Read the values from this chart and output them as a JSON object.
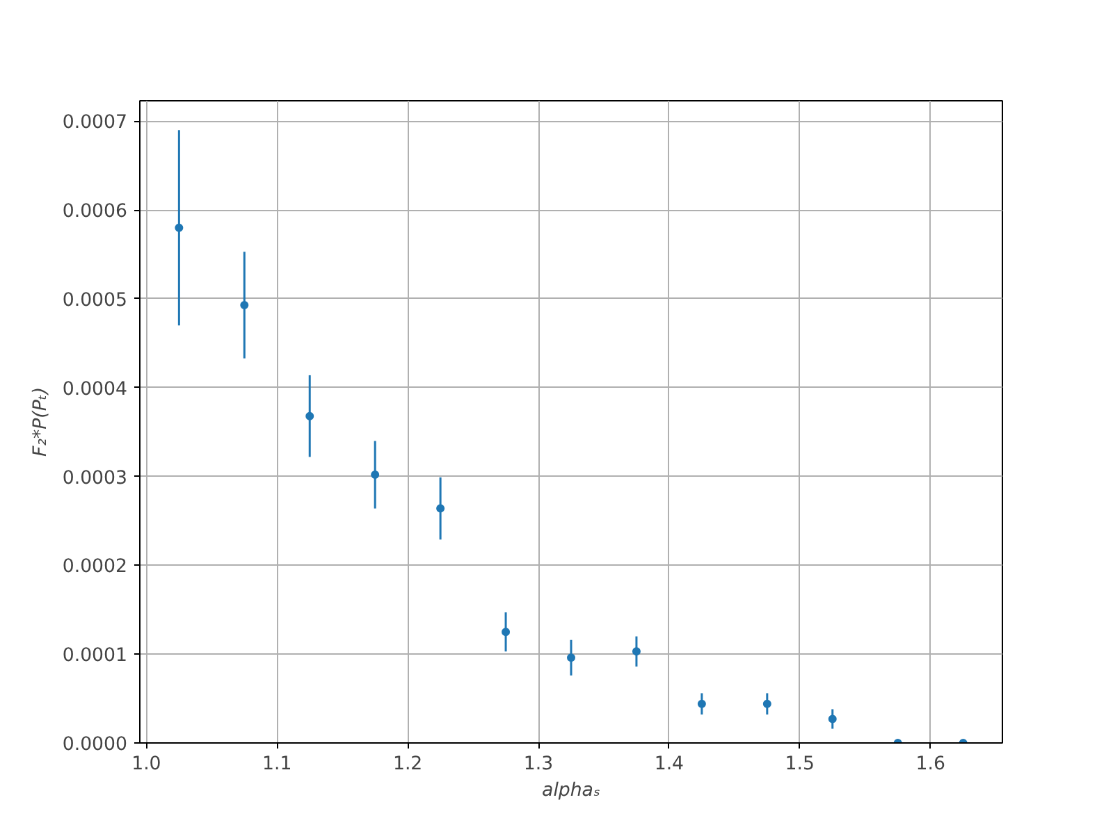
{
  "chart_data": {
    "type": "scatter",
    "xlabel": "alphaₛ",
    "ylabel": "F₂*P(Pₜ)",
    "x": [
      1.025,
      1.075,
      1.125,
      1.175,
      1.225,
      1.275,
      1.325,
      1.375,
      1.425,
      1.475,
      1.525,
      1.575,
      1.625
    ],
    "series": [
      {
        "color": "#1f77b4",
        "values": [
          0.00058,
          0.000493,
          0.000368,
          0.000302,
          0.000264,
          0.000125,
          9.6e-05,
          0.000103,
          4.4e-05,
          4.4e-05,
          2.7e-05,
          0.0,
          0.0
        ],
        "errors": [
          0.00011,
          6e-05,
          4.6e-05,
          3.8e-05,
          3.5e-05,
          2.2e-05,
          2e-05,
          1.7e-05,
          1.2e-05,
          1.2e-05,
          1.1e-05,
          null,
          null
        ]
      }
    ],
    "xlim": [
      0.995,
      1.655
    ],
    "ylim": [
      0,
      0.000723
    ],
    "xticks": [
      {
        "value": 1.0,
        "label": "1.0"
      },
      1.1,
      1.2,
      1.3,
      1.4,
      1.5,
      1.6
    ],
    "yticks": [
      {
        "value": 0,
        "label": "0.0000"
      },
      {
        "value": 0.0001,
        "label": "0.0001"
      },
      {
        "value": 0.0002,
        "label": "0.0002"
      },
      {
        "value": 0.0003,
        "label": "0.0003"
      },
      {
        "value": 0.0004,
        "label": "0.0004"
      },
      {
        "value": 0.0005,
        "label": "0.0005"
      },
      {
        "value": 0.0006,
        "label": "0.0006"
      },
      {
        "value": 0.0007,
        "label": "0.0007"
      }
    ],
    "grid": true,
    "marker": "circle"
  }
}
